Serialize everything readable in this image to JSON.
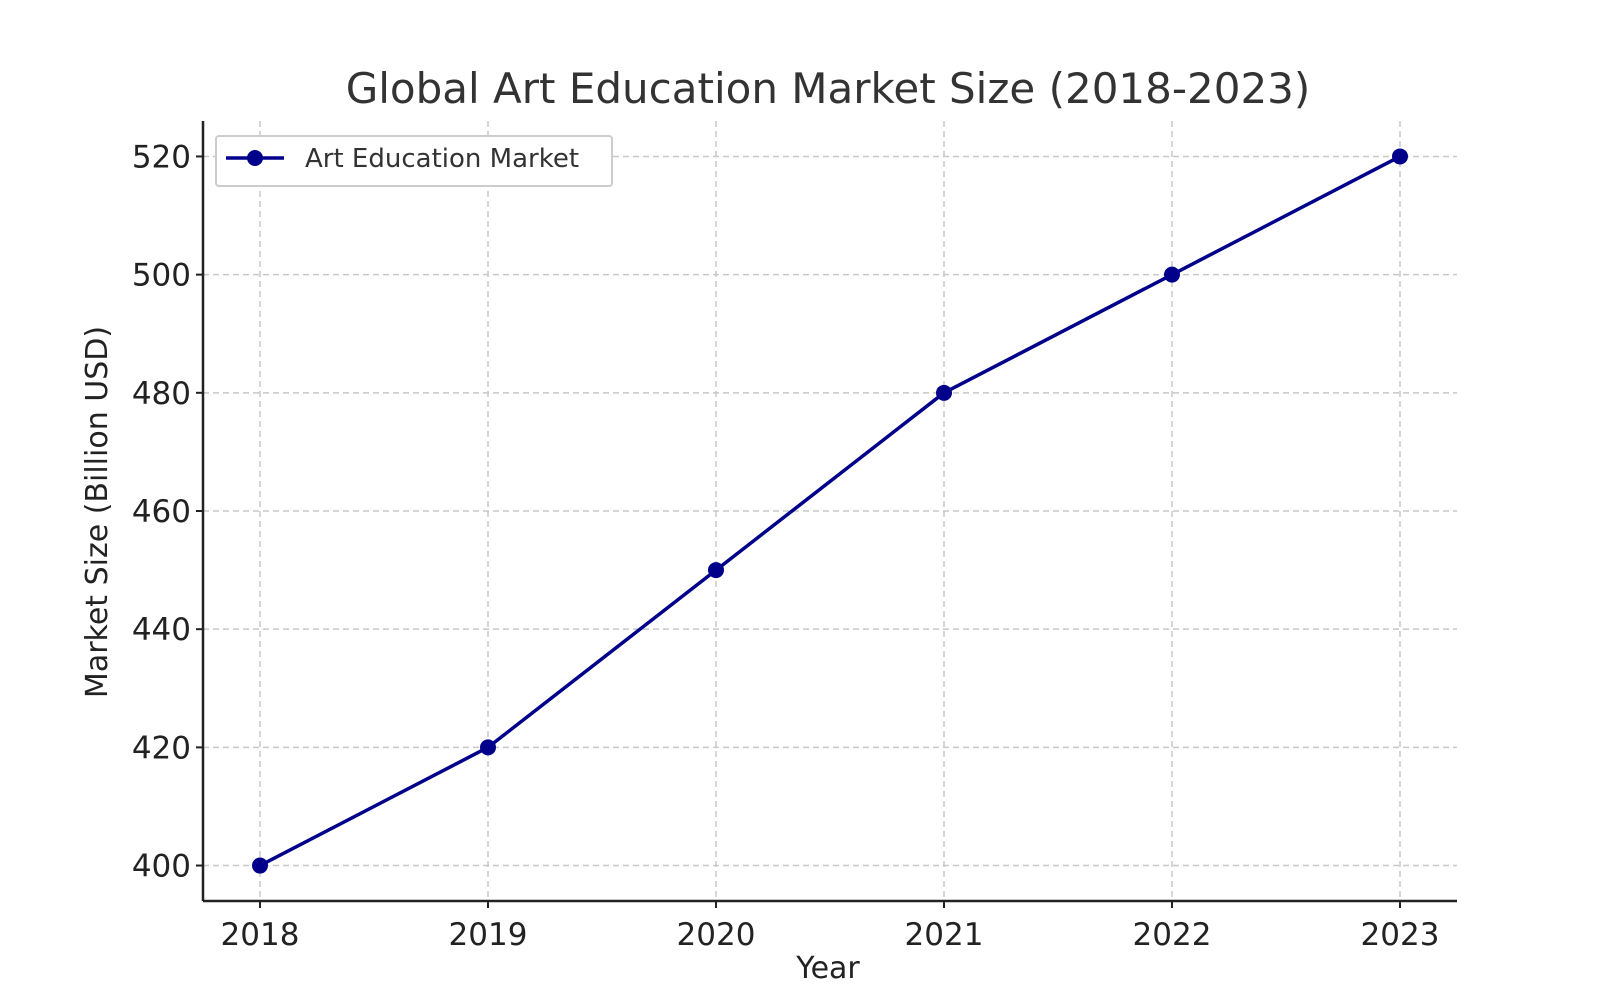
{
  "chart_data": {
    "type": "line",
    "title": "Global Art Education Market Size (2018-2023)",
    "xlabel": "Year",
    "ylabel": "Market Size (Billion USD)",
    "x": [
      2018,
      2019,
      2020,
      2021,
      2022,
      2023
    ],
    "series": [
      {
        "name": "Art Education Market",
        "values": [
          400,
          420,
          450,
          480,
          500,
          520
        ],
        "color": "#00008b"
      }
    ],
    "xlim": [
      2017.75,
      2023.25
    ],
    "ylim": [
      394,
      526
    ],
    "x_ticks": [
      "2018",
      "2019",
      "2020",
      "2021",
      "2022",
      "2023"
    ],
    "y_ticks": [
      "400",
      "420",
      "440",
      "460",
      "480",
      "500",
      "520"
    ],
    "grid": true,
    "grid_style": "dashed",
    "legend_position": "upper-left"
  }
}
